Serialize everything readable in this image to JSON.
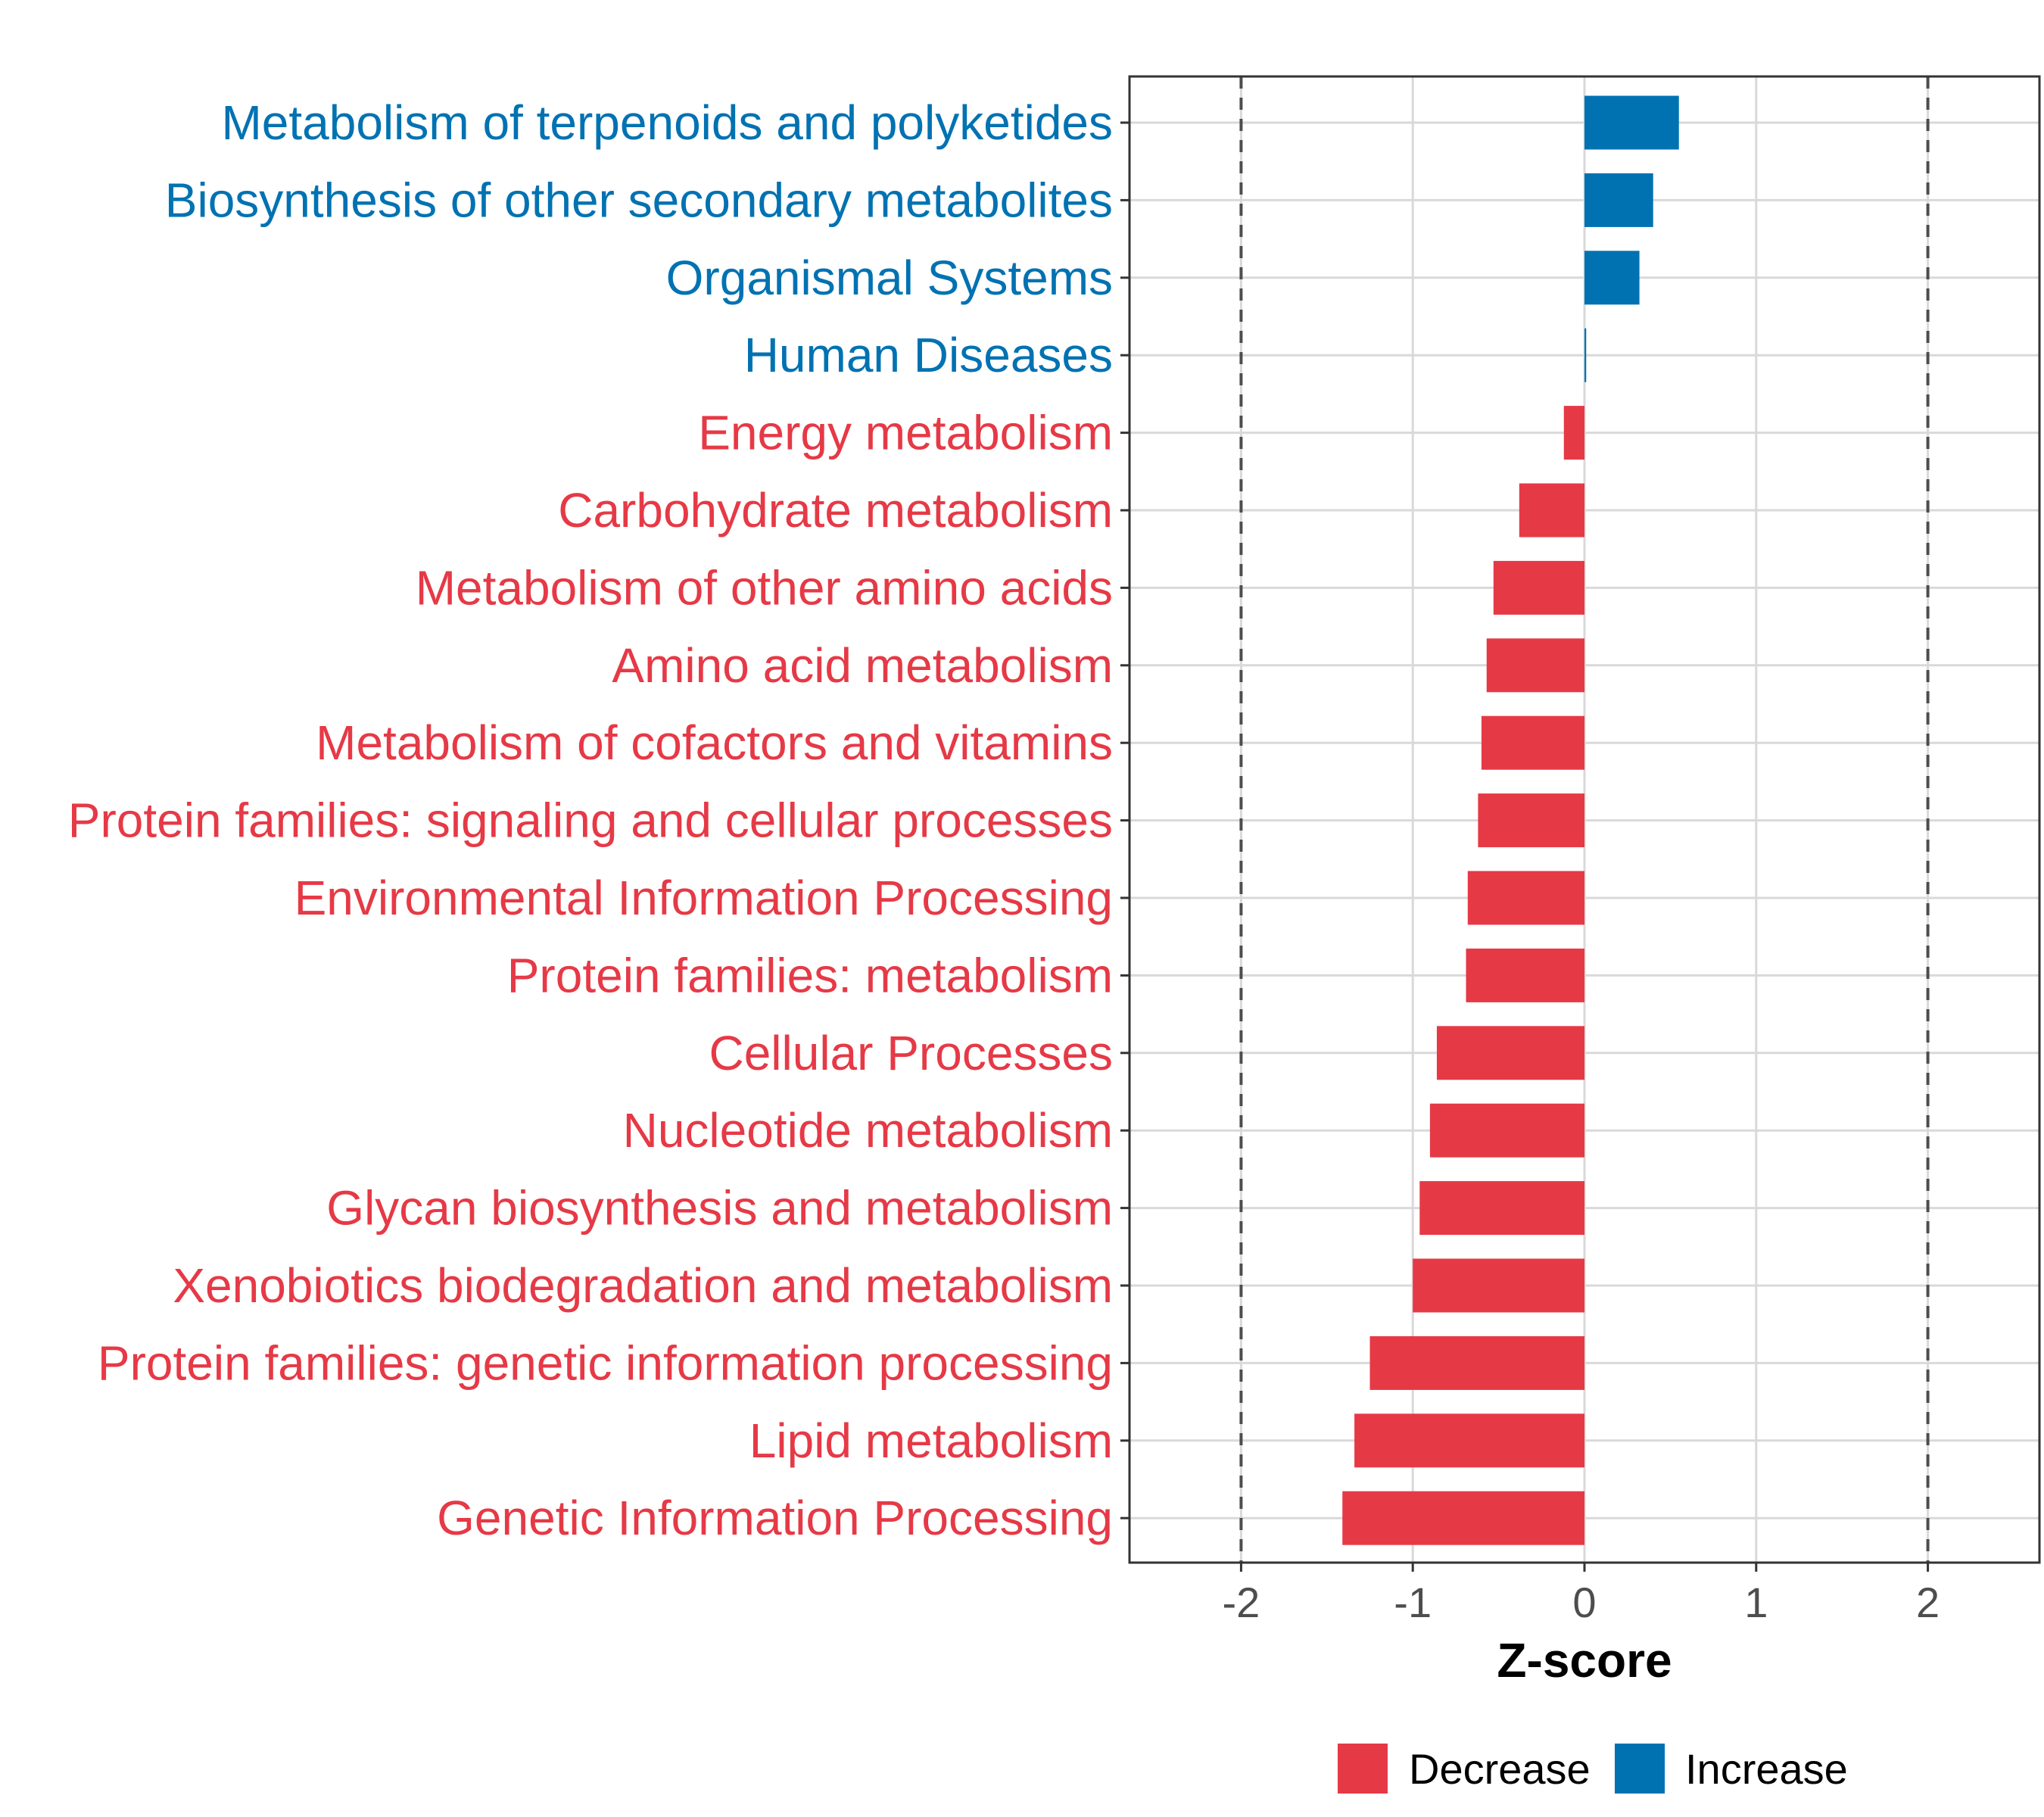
{
  "chart_data": {
    "type": "bar",
    "orientation": "horizontal",
    "title": "",
    "xlabel": "Z-score",
    "ylabel": "",
    "xlim": [
      -2.65,
      2.65
    ],
    "xticks": [
      -2,
      -1,
      0,
      1,
      2
    ],
    "xtick_labels": [
      "-2",
      "-1",
      "0",
      "1",
      "2"
    ],
    "reference_lines": [
      -2,
      2
    ],
    "grid": true,
    "colors": {
      "Decrease": "#e63946",
      "Increase": "#0072b2"
    },
    "categories": [
      "Metabolism of terpenoids and polyketides",
      "Biosynthesis of other secondary metabolites",
      "Organismal Systems",
      "Human Diseases",
      "Energy metabolism",
      "Carbohydrate metabolism",
      "Metabolism of other amino acids",
      "Amino acid metabolism",
      "Metabolism of cofactors and vitamins",
      "Protein families: signaling and cellular processes",
      "Environmental Information Processing",
      "Protein families: metabolism",
      "Cellular Processes",
      "Nucleotide metabolism",
      "Glycan biosynthesis and metabolism",
      "Xenobiotics biodegradation and metabolism",
      "Protein families: genetic information processing",
      "Lipid metabolism",
      "Genetic Information Processing"
    ],
    "values": [
      0.55,
      0.4,
      0.32,
      0.01,
      -0.12,
      -0.38,
      -0.53,
      -0.57,
      -0.6,
      -0.62,
      -0.68,
      -0.69,
      -0.86,
      -0.9,
      -0.96,
      -1.0,
      -1.25,
      -1.34,
      -1.41
    ],
    "groups": [
      "Increase",
      "Increase",
      "Increase",
      "Increase",
      "Decrease",
      "Decrease",
      "Decrease",
      "Decrease",
      "Decrease",
      "Decrease",
      "Decrease",
      "Decrease",
      "Decrease",
      "Decrease",
      "Decrease",
      "Decrease",
      "Decrease",
      "Decrease",
      "Decrease"
    ],
    "legend": {
      "position": "bottom",
      "entries": [
        {
          "label": "Decrease",
          "color": "#e63946"
        },
        {
          "label": "Increase",
          "color": "#0072b2"
        }
      ]
    }
  }
}
